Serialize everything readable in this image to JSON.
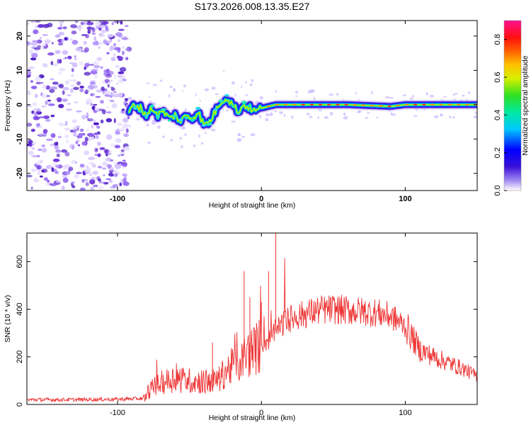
{
  "figure_title": "S173.2026.008.13.35.E27",
  "colors": {
    "line": "#ee3333",
    "frame": "#000000",
    "speckle": "#8a4cf0"
  },
  "chart_data": [
    {
      "type": "heatmap",
      "name": "spectrogram",
      "xlabel": "Height of straight line (km)",
      "ylabel": "Frequency (Hz)",
      "xlim": [
        -163,
        150
      ],
      "ylim": [
        -25,
        24.5
      ],
      "xticks": [
        -100,
        0,
        100
      ],
      "xtick_labels": [
        "-100",
        "0",
        "100"
      ],
      "yticks": [
        -20,
        -10,
        0,
        10,
        20
      ],
      "ytick_labels": [
        "-20",
        "-10",
        "0",
        "10",
        "20"
      ],
      "colorbar": {
        "label": "Normalized spectral amplitude",
        "range": [
          0,
          0.9
        ],
        "ticks": [
          0,
          0.2,
          0.4,
          0.6,
          0.8
        ],
        "tick_labels": [
          "0.0",
          "0.2",
          "0.4",
          "0.6",
          "0.8"
        ]
      },
      "noise_region_x": [
        -163,
        -92
      ],
      "ridge": {
        "x": [
          -92,
          -88,
          -84,
          -80,
          -76,
          -72,
          -68,
          -64,
          -60,
          -56,
          -52,
          -48,
          -44,
          -40,
          -36,
          -32,
          -28,
          -24,
          -20,
          -16,
          -12,
          -8,
          -4,
          0,
          10,
          30,
          60,
          90,
          100,
          120,
          150
        ],
        "freq": [
          -2,
          0,
          -1,
          -3,
          -1,
          -3,
          -2,
          -4,
          -3,
          -5,
          -3,
          -4,
          -2,
          -6,
          -5,
          -2,
          1,
          2,
          0,
          -2,
          0,
          -1,
          -2,
          -1,
          0,
          0,
          0,
          -0.5,
          0,
          0,
          0
        ]
      }
    },
    {
      "type": "line",
      "name": "snr",
      "xlabel": "Height of straight line (km)",
      "ylabel": "SNR (10 * v/v)",
      "xlim": [
        -163,
        150
      ],
      "ylim": [
        0,
        720
      ],
      "xticks": [
        -100,
        0,
        100
      ],
      "xtick_labels": [
        "-100",
        "0",
        "100"
      ],
      "yticks": [
        0,
        200,
        400,
        600
      ],
      "ytick_labels": [
        "0",
        "200",
        "400",
        "600"
      ],
      "series": [
        {
          "name": "SNR",
          "x": [
            -163,
            -130,
            -100,
            -82,
            -78,
            -70,
            -60,
            -50,
            -40,
            -30,
            -25,
            -20,
            -15,
            -10,
            -5,
            0,
            5,
            10,
            15,
            20,
            30,
            40,
            50,
            60,
            70,
            80,
            90,
            100,
            105,
            110,
            120,
            130,
            140,
            150
          ],
          "values": [
            20,
            20,
            22,
            25,
            60,
            90,
            110,
            100,
            95,
            100,
            140,
            160,
            180,
            210,
            230,
            250,
            270,
            310,
            340,
            360,
            380,
            395,
            400,
            395,
            390,
            385,
            370,
            330,
            280,
            230,
            200,
            175,
            150,
            120
          ]
        }
      ],
      "spikes": [
        {
          "x": -34,
          "value": 260
        },
        {
          "x": -12,
          "value": 560
        },
        {
          "x": -8,
          "value": 450
        },
        {
          "x": 0,
          "value": 430
        },
        {
          "x": 5,
          "value": 560
        },
        {
          "x": 10,
          "value": 720
        }
      ]
    }
  ]
}
